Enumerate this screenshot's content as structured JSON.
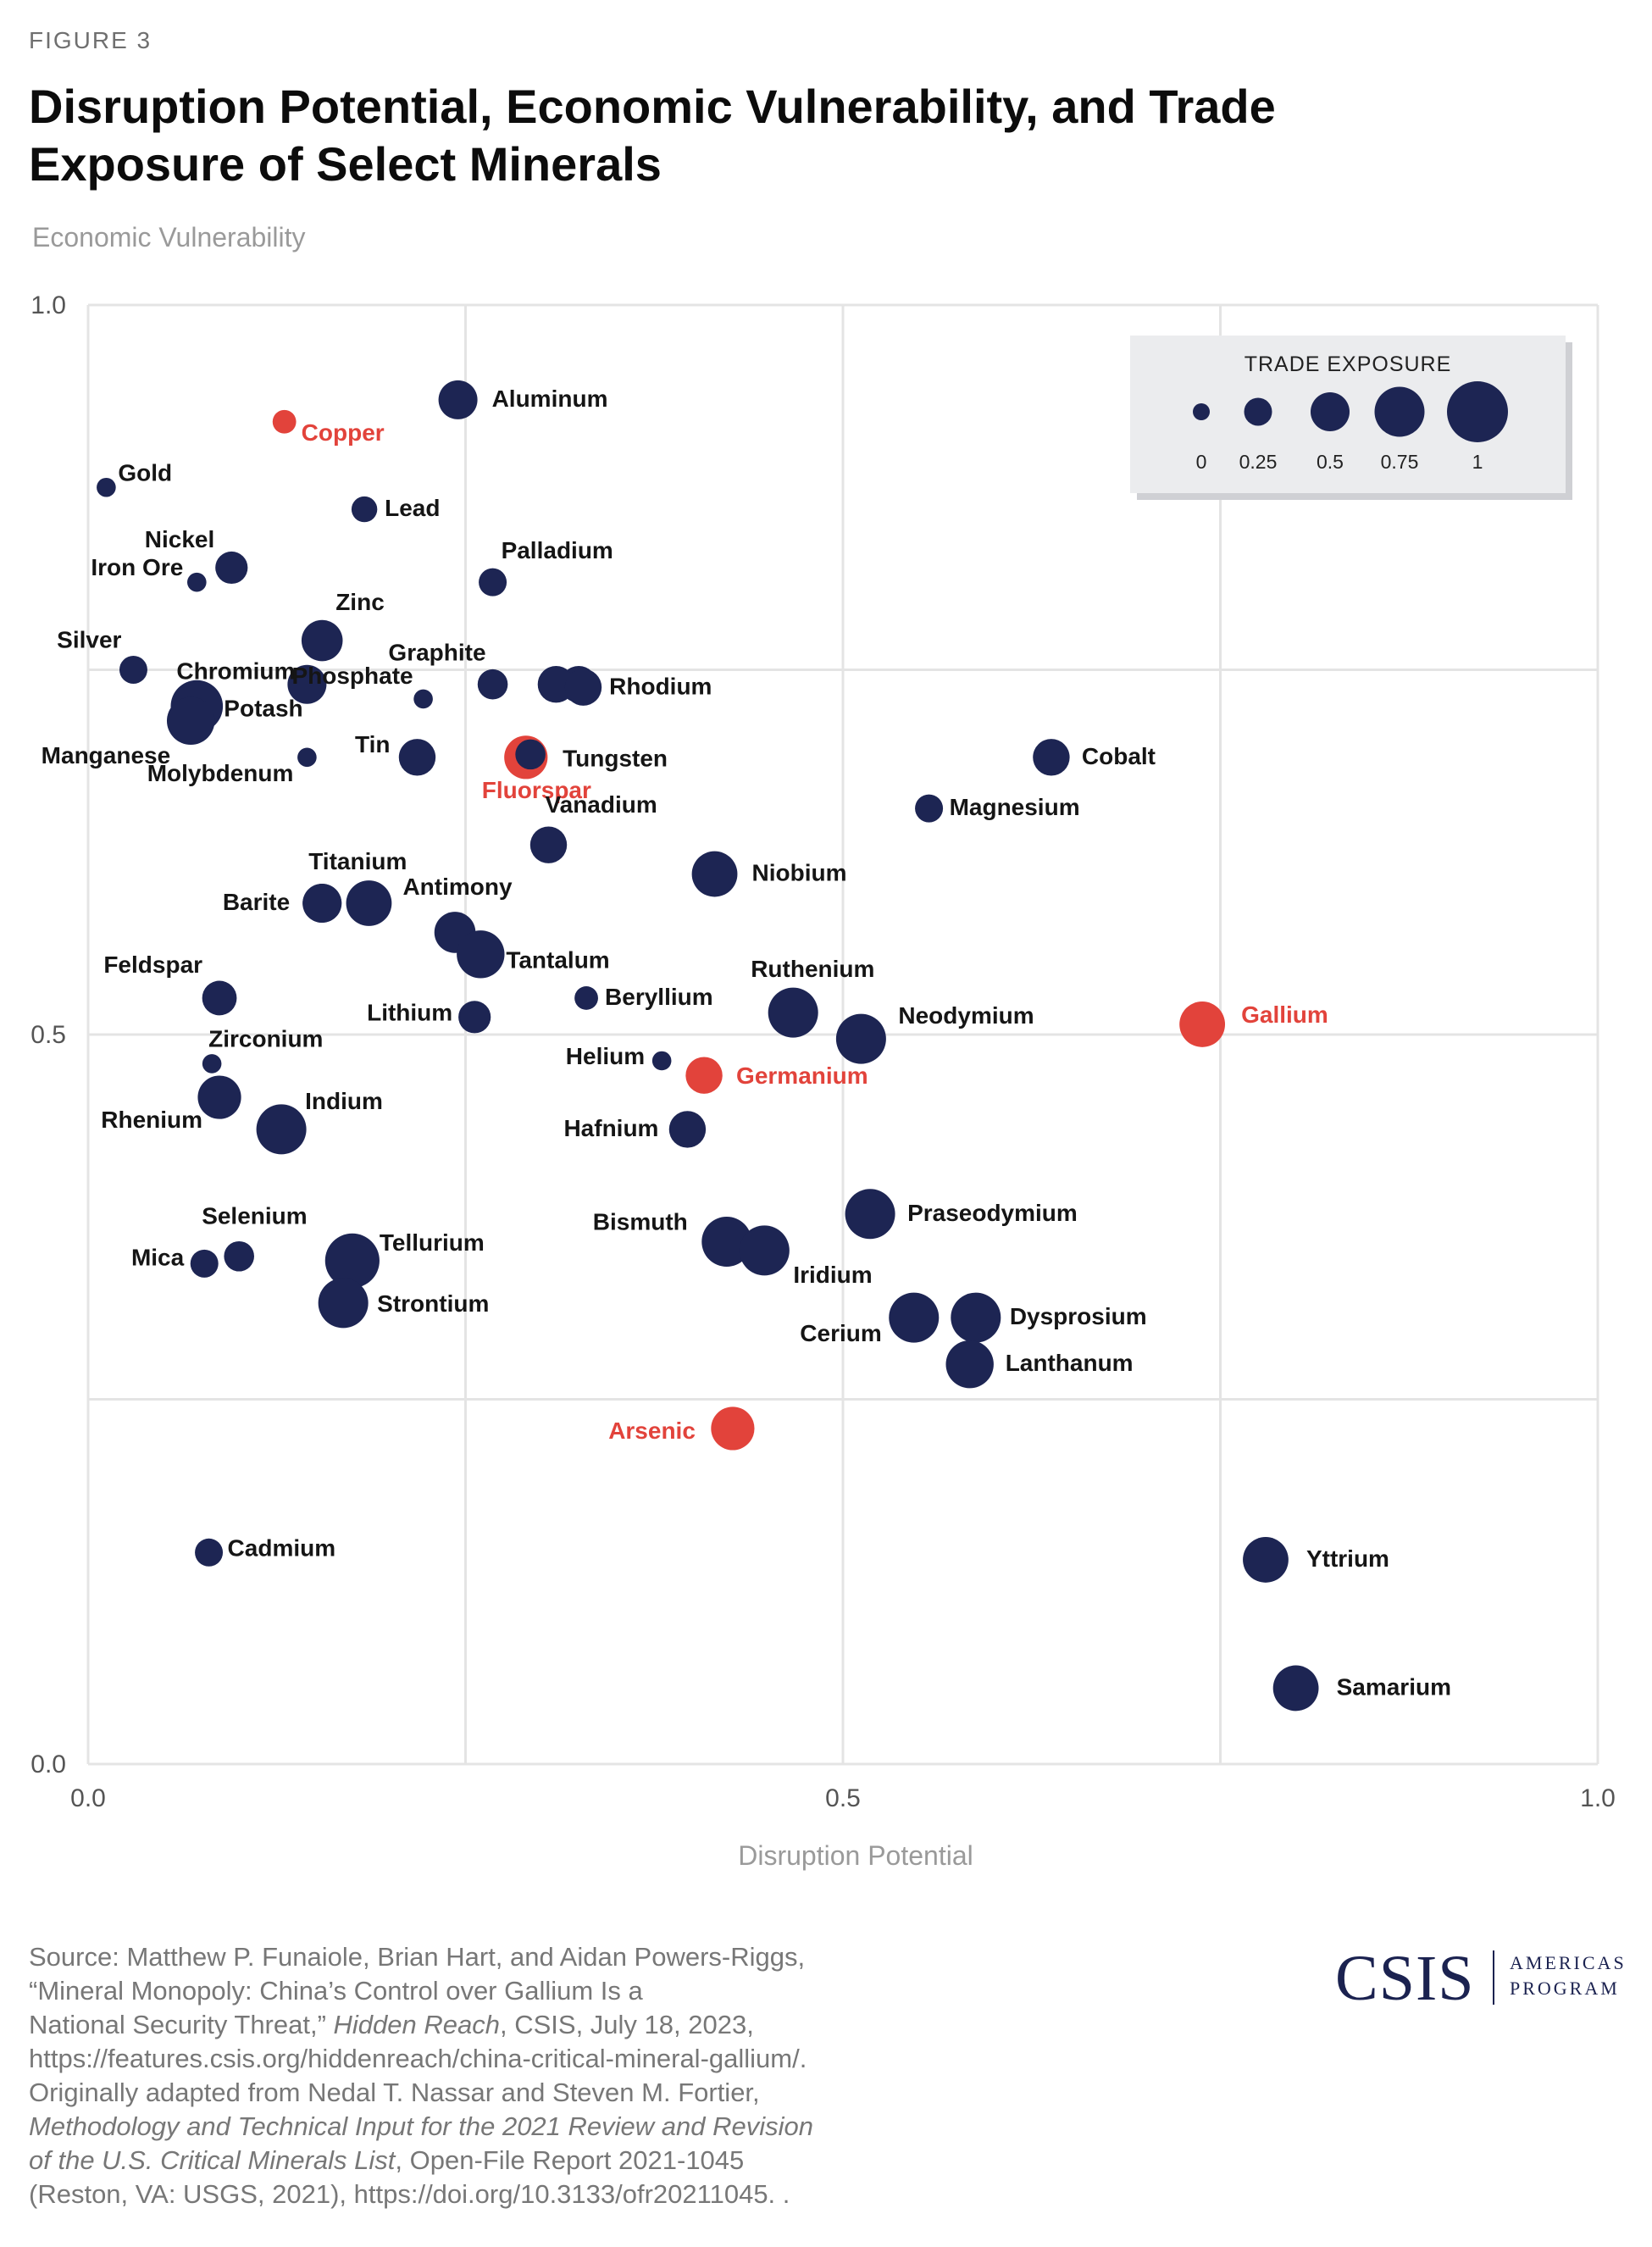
{
  "figure_label": "FIGURE 3",
  "title": "Disruption Potential, Economic Vulnerability, and Trade Exposure of Select Minerals",
  "source": {
    "line1": "Source: Matthew P. Funaiole, Brian Hart, and Aidan Powers-Riggs,",
    "line2": "“Mineral Monopoly: China’s Control over Gallium Is a",
    "line3_pre": "National Security Threat,” ",
    "line3_ital": "Hidden Reach",
    "line3_post": ", CSIS, July 18, 2023,",
    "line4": "https://features.csis.org/hiddenreach/china-critical-mineral-gallium/.",
    "line5": "Originally adapted from Nedal T. Nassar and Steven M. Fortier,",
    "line6_ital": "Methodology and Technical Input for the 2021 Review and Revision",
    "line7_ital": "of the U.S. Critical Minerals List",
    "line7_post": ", Open-File Report 2021-1045",
    "line8": "(Reston, VA: USGS, 2021), https://doi.org/10.3133/ofr20211045. ."
  },
  "logo": {
    "name": "CSIS",
    "sub1": "AMERICAS",
    "sub2": "PROGRAM"
  },
  "colors": {
    "navy": "#1d2553",
    "red": "#e2433b",
    "grid": "#e4e4e4",
    "legend_bg": "#ebecee"
  },
  "chart_data": {
    "type": "scatter",
    "xlabel": "Disruption Potential",
    "ylabel": "Economic Vulnerability",
    "xlim": [
      0,
      1
    ],
    "ylim": [
      0,
      1
    ],
    "x_ticks": [
      "0.0",
      "0.5",
      "1.0"
    ],
    "y_ticks": [
      "0.0",
      "0.5",
      "1.0"
    ],
    "grid": true,
    "legend": {
      "title": "TRADE EXPOSURE",
      "position": "top-right",
      "values": [
        0,
        0.25,
        0.5,
        0.75,
        1
      ],
      "labels": [
        "0",
        "0.25",
        "0.5",
        "0.75",
        "1"
      ]
    },
    "points": [
      {
        "name": "Aluminum",
        "x": 0.245,
        "y": 0.935,
        "size": 0.5,
        "highlight": false
      },
      {
        "name": "Copper",
        "x": 0.13,
        "y": 0.92,
        "size": 0.15,
        "highlight": true
      },
      {
        "name": "Gold",
        "x": 0.012,
        "y": 0.875,
        "size": 0.05,
        "highlight": false
      },
      {
        "name": "Lead",
        "x": 0.183,
        "y": 0.86,
        "size": 0.2,
        "highlight": false
      },
      {
        "name": "Nickel",
        "x": 0.095,
        "y": 0.82,
        "size": 0.35,
        "highlight": false
      },
      {
        "name": "Iron Ore",
        "x": 0.072,
        "y": 0.81,
        "size": 0.05,
        "highlight": false
      },
      {
        "name": "Palladium",
        "x": 0.268,
        "y": 0.81,
        "size": 0.25,
        "highlight": false
      },
      {
        "name": "Zinc",
        "x": 0.155,
        "y": 0.77,
        "size": 0.55,
        "highlight": false
      },
      {
        "name": "Silver",
        "x": 0.03,
        "y": 0.75,
        "size": 0.25,
        "highlight": false
      },
      {
        "name": "Chromium",
        "x": 0.145,
        "y": 0.74,
        "size": 0.5,
        "highlight": false
      },
      {
        "name": "Graphite",
        "x": 0.268,
        "y": 0.74,
        "size": 0.3,
        "highlight": false
      },
      {
        "name": "Potash",
        "x": 0.072,
        "y": 0.725,
        "size": 0.8,
        "highlight": false
      },
      {
        "name": "Phosphate",
        "x": 0.222,
        "y": 0.73,
        "size": 0.05,
        "highlight": false
      },
      {
        "name": "Rhodium",
        "x": 0.325,
        "y": 0.74,
        "size": 0.45,
        "highlight": false
      },
      {
        "name": "Manganese",
        "x": 0.068,
        "y": 0.715,
        "size": 0.7,
        "highlight": false
      },
      {
        "name": "Graphite2",
        "x": 0.31,
        "y": 0.74,
        "size": 0.45,
        "highlight": false,
        "unlabeled": true
      },
      {
        "name": "Rhodium2",
        "x": 0.328,
        "y": 0.738,
        "size": 0.45,
        "highlight": false,
        "unlabeled": true
      },
      {
        "name": "Tin",
        "x": 0.218,
        "y": 0.69,
        "size": 0.45,
        "highlight": false
      },
      {
        "name": "Molybdenum",
        "x": 0.145,
        "y": 0.69,
        "size": 0.05,
        "highlight": false
      },
      {
        "name": "Fluorspar",
        "x": 0.29,
        "y": 0.69,
        "size": 0.6,
        "highlight": true
      },
      {
        "name": "Tungsten",
        "x": 0.293,
        "y": 0.692,
        "size": 0.3,
        "highlight": false
      },
      {
        "name": "Cobalt",
        "x": 0.638,
        "y": 0.69,
        "size": 0.45,
        "highlight": false
      },
      {
        "name": "Magnesium",
        "x": 0.557,
        "y": 0.655,
        "size": 0.25,
        "highlight": false
      },
      {
        "name": "Vanadium",
        "x": 0.305,
        "y": 0.63,
        "size": 0.45,
        "highlight": false
      },
      {
        "name": "Niobium",
        "x": 0.415,
        "y": 0.61,
        "size": 0.65,
        "highlight": false
      },
      {
        "name": "Titanium",
        "x": 0.155,
        "y": 0.59,
        "size": 0.5,
        "highlight": false
      },
      {
        "name": "Barite",
        "x": 0.155,
        "y": 0.59,
        "size": 0.5,
        "highlight": false,
        "unlabeled": true
      },
      {
        "name": "Antimony",
        "x": 0.186,
        "y": 0.59,
        "size": 0.65,
        "highlight": false
      },
      {
        "name": "Antimony2",
        "x": 0.243,
        "y": 0.57,
        "size": 0.55,
        "highlight": false,
        "unlabeled": true
      },
      {
        "name": "Tantalum",
        "x": 0.26,
        "y": 0.555,
        "size": 0.7,
        "highlight": false
      },
      {
        "name": "Feldspar",
        "x": 0.087,
        "y": 0.525,
        "size": 0.4,
        "highlight": false
      },
      {
        "name": "Beryllium",
        "x": 0.33,
        "y": 0.525,
        "size": 0.15,
        "highlight": false
      },
      {
        "name": "Ruthenium",
        "x": 0.467,
        "y": 0.515,
        "size": 0.75,
        "highlight": false
      },
      {
        "name": "Lithium",
        "x": 0.256,
        "y": 0.512,
        "size": 0.35,
        "highlight": false
      },
      {
        "name": "Neodymium",
        "x": 0.512,
        "y": 0.497,
        "size": 0.75,
        "highlight": false
      },
      {
        "name": "Gallium",
        "x": 0.738,
        "y": 0.507,
        "size": 0.65,
        "highlight": true
      },
      {
        "name": "Zirconium",
        "x": 0.082,
        "y": 0.48,
        "size": 0.05,
        "highlight": false
      },
      {
        "name": "Helium",
        "x": 0.38,
        "y": 0.482,
        "size": 0.05,
        "highlight": false
      },
      {
        "name": "Germanium",
        "x": 0.408,
        "y": 0.472,
        "size": 0.45,
        "highlight": true
      },
      {
        "name": "Rhenium",
        "x": 0.087,
        "y": 0.457,
        "size": 0.6,
        "highlight": false
      },
      {
        "name": "Indium",
        "x": 0.128,
        "y": 0.435,
        "size": 0.75,
        "highlight": false
      },
      {
        "name": "Hafnium",
        "x": 0.397,
        "y": 0.435,
        "size": 0.45,
        "highlight": false
      },
      {
        "name": "Praseodymium",
        "x": 0.518,
        "y": 0.377,
        "size": 0.75,
        "highlight": false
      },
      {
        "name": "Bismuth",
        "x": 0.423,
        "y": 0.358,
        "size": 0.75,
        "highlight": false
      },
      {
        "name": "Iridium",
        "x": 0.448,
        "y": 0.352,
        "size": 0.75,
        "highlight": false
      },
      {
        "name": "Selenium",
        "x": 0.1,
        "y": 0.348,
        "size": 0.3,
        "highlight": false
      },
      {
        "name": "Mica",
        "x": 0.077,
        "y": 0.343,
        "size": 0.25,
        "highlight": false
      },
      {
        "name": "Tellurium",
        "x": 0.175,
        "y": 0.345,
        "size": 0.85,
        "highlight": false
      },
      {
        "name": "Strontium",
        "x": 0.169,
        "y": 0.316,
        "size": 0.75,
        "highlight": false
      },
      {
        "name": "Cerium",
        "x": 0.547,
        "y": 0.306,
        "size": 0.75,
        "highlight": false
      },
      {
        "name": "Dysprosium",
        "x": 0.588,
        "y": 0.306,
        "size": 0.75,
        "highlight": false
      },
      {
        "name": "Lanthanum",
        "x": 0.584,
        "y": 0.274,
        "size": 0.7,
        "highlight": false
      },
      {
        "name": "Arsenic",
        "x": 0.427,
        "y": 0.23,
        "size": 0.6,
        "highlight": true
      },
      {
        "name": "Cadmium",
        "x": 0.08,
        "y": 0.145,
        "size": 0.25,
        "highlight": false
      },
      {
        "name": "Yttrium",
        "x": 0.78,
        "y": 0.14,
        "size": 0.65,
        "highlight": false
      },
      {
        "name": "Samarium",
        "x": 0.8,
        "y": 0.052,
        "size": 0.65,
        "highlight": false
      }
    ]
  }
}
